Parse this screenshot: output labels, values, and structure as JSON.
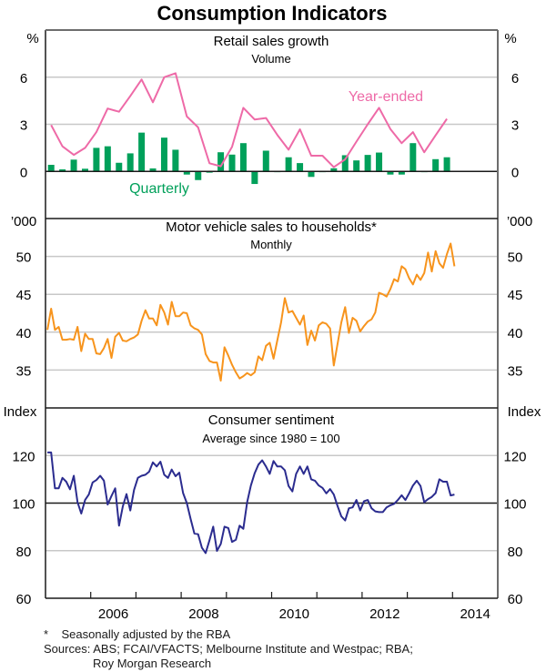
{
  "title": "Consumption Indicators",
  "footnote": "*    Seasonally adjusted by the RBA",
  "sources_line1": "Sources: ABS; FCAI/VFACTS; Melbourne Institute and Westpac; RBA;",
  "sources_line2": "Roy Morgan Research",
  "colors": {
    "quarterly": "#00a05a",
    "year_ended": "#ee6aa7",
    "motor": "#f7941d",
    "sentiment": "#2b2c8f",
    "grid": "#c8c8c8",
    "axis": "#1a1a1a",
    "frame": "#6d6d6d"
  },
  "chart_data": [
    {
      "type": "bar+line",
      "title": "Retail sales growth",
      "subtitle": "Volume",
      "unit": "%",
      "ylim": [
        -3,
        9
      ],
      "yticks": [
        0,
        3,
        6
      ],
      "zero_line": 0,
      "x_start": "2005-Q1",
      "frequency": "quarterly",
      "series": [
        {
          "name": "Quarterly",
          "kind": "bar",
          "values": [
            0.42,
            0.13,
            0.75,
            0.17,
            1.5,
            1.6,
            0.55,
            1.15,
            2.47,
            0.19,
            2.15,
            1.38,
            -0.2,
            -0.55,
            -0.08,
            1.22,
            1.07,
            1.8,
            -0.8,
            1.32,
            -0.05,
            0.9,
            0.53,
            -0.35,
            -0.05,
            0.2,
            1.03,
            0.7,
            1.05,
            1.2,
            -0.2,
            -0.2,
            1.8,
            -0.05,
            0.78,
            0.9
          ]
        },
        {
          "name": "Year-ended",
          "kind": "line",
          "values": [
            2.95,
            1.6,
            1.05,
            1.5,
            2.5,
            4.0,
            3.8,
            4.8,
            5.85,
            4.4,
            6.0,
            6.25,
            3.5,
            2.8,
            0.52,
            0.33,
            1.57,
            4.05,
            3.3,
            3.4,
            2.33,
            1.38,
            2.68,
            1.0,
            1.0,
            0.27,
            0.77,
            1.9,
            3.0,
            4.05,
            2.7,
            1.8,
            2.5,
            1.22,
            2.3,
            3.35
          ]
        }
      ]
    },
    {
      "type": "line",
      "title": "Motor vehicle sales to households*",
      "subtitle": "Monthly",
      "unit": "’000",
      "ylim": [
        30,
        55
      ],
      "yticks": [
        35,
        40,
        45,
        50
      ],
      "x_start": "2005-01",
      "frequency": "monthly",
      "series": [
        {
          "name": "Motor vehicle sales",
          "values": [
            40.3,
            43.1,
            40.3,
            40.7,
            39.0,
            39.0,
            39.1,
            39.0,
            40.7,
            37.5,
            39.8,
            39.1,
            39.1,
            37.2,
            37.1,
            37.9,
            39.1,
            36.6,
            39.4,
            39.9,
            38.9,
            38.8,
            39.1,
            39.3,
            39.7,
            41.5,
            42.9,
            41.8,
            41.8,
            40.9,
            43.6,
            42.6,
            41.0,
            44.0,
            42.1,
            42.1,
            42.6,
            42.5,
            40.9,
            40.5,
            40.3,
            39.7,
            37.1,
            36.2,
            36.0,
            36.0,
            33.6,
            38.0,
            36.9,
            35.7,
            34.7,
            33.9,
            34.2,
            34.6,
            34.3,
            34.7,
            36.8,
            36.3,
            38.2,
            38.6,
            36.5,
            38.9,
            41.3,
            44.5,
            42.6,
            42.8,
            41.9,
            41.0,
            42.2,
            38.3,
            40.2,
            38.9,
            40.9,
            41.3,
            41.1,
            40.5,
            35.6,
            38.5,
            41.3,
            43.3,
            39.9,
            41.9,
            41.5,
            40.1,
            40.8,
            41.4,
            41.7,
            42.6,
            45.2,
            45.0,
            44.7,
            45.7,
            47.0,
            46.7,
            48.7,
            48.3,
            47.1,
            46.3,
            47.6,
            46.9,
            47.8,
            50.5,
            48.0,
            50.7,
            49.1,
            48.5,
            50.3,
            51.7,
            48.7
          ]
        }
      ]
    },
    {
      "type": "line",
      "title": "Consumer sentiment",
      "subtitle": "Average since 1980 = 100",
      "unit": "Index",
      "ylim": [
        60,
        140
      ],
      "yticks": [
        60,
        80,
        100,
        120
      ],
      "reference_line": 100,
      "x_start": "2005-01",
      "frequency": "monthly",
      "xlabels": [
        "2006",
        "2008",
        "2010",
        "2012",
        "2014"
      ],
      "x_range_years": [
        2005,
        2015
      ],
      "series": [
        {
          "name": "Consumer sentiment",
          "values": [
            121.3,
            121.3,
            106.2,
            106.2,
            110.6,
            109.0,
            105.8,
            111.5,
            100.4,
            95.6,
            101.3,
            103.6,
            108.7,
            109.7,
            111.5,
            109.4,
            99.4,
            103.0,
            106.2,
            90.5,
            98.5,
            103.8,
            96.9,
            105.5,
            110.6,
            111.5,
            111.9,
            113.2,
            117.1,
            115.4,
            117.4,
            111.9,
            110.6,
            114.1,
            111.3,
            112.8,
            104.2,
            100.0,
            93.3,
            87.2,
            86.9,
            81.2,
            79.0,
            84.4,
            90.1,
            79.9,
            82.8,
            90.1,
            89.5,
            83.7,
            84.6,
            90.5,
            89.2,
            100.4,
            107.4,
            112.6,
            116.2,
            118.0,
            115.4,
            112.3,
            117.7,
            115.4,
            115.4,
            113.8,
            107.2,
            104.9,
            112.3,
            115.4,
            112.3,
            115.4,
            110.0,
            109.4,
            107.4,
            106.4,
            104.1,
            105.9,
            103.6,
            98.7,
            94.4,
            92.7,
            97.8,
            98.2,
            101.3,
            96.9,
            100.8,
            101.3,
            97.8,
            96.5,
            96.2,
            96.2,
            98.2,
            99.1,
            99.7,
            101.3,
            103.3,
            101.3,
            104.2,
            107.4,
            109.4,
            107.2,
            100.4,
            101.7,
            102.6,
            104.2,
            110.0,
            109.0,
            109.0,
            103.2,
            103.6
          ]
        }
      ]
    }
  ]
}
